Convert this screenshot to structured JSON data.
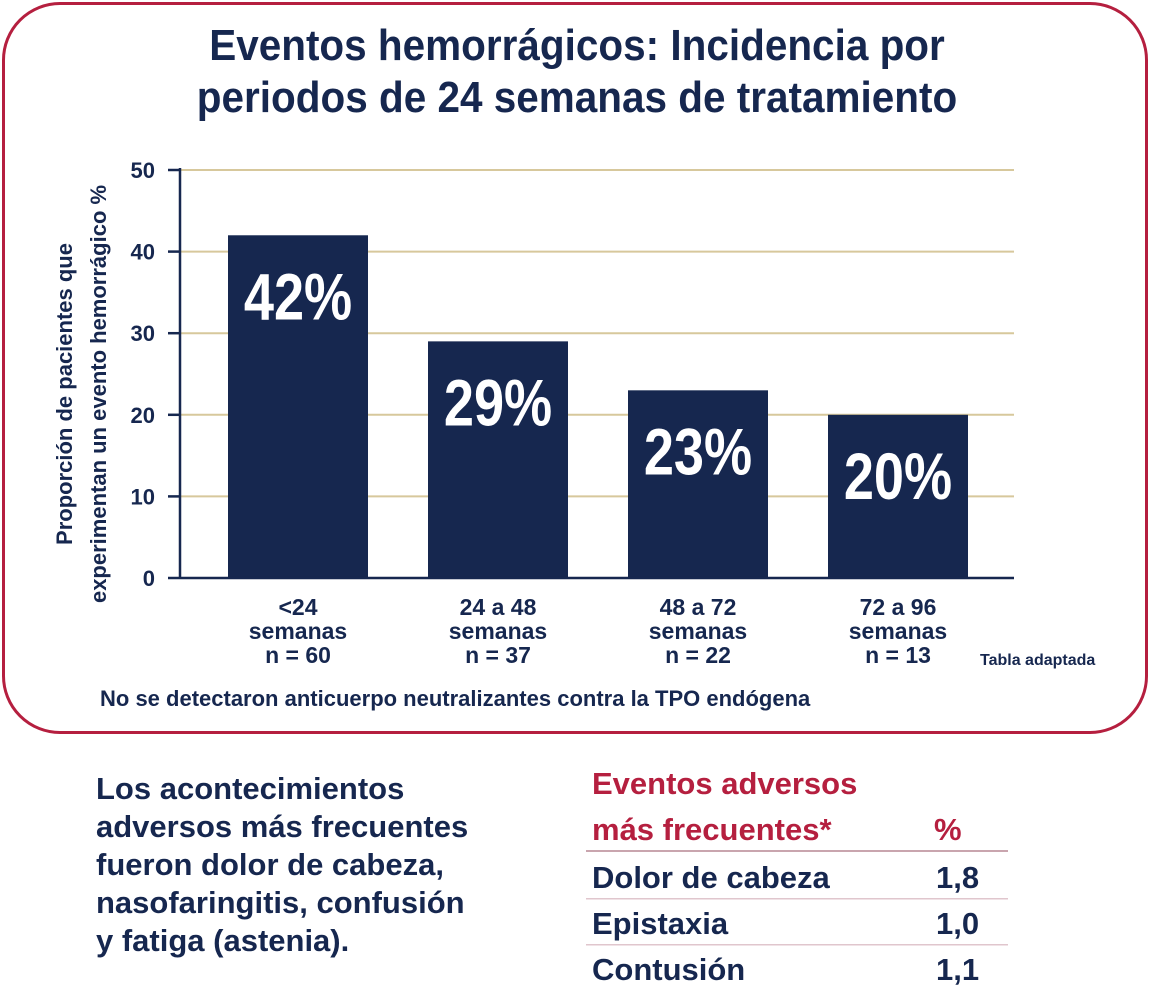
{
  "title_lines": [
    "Eventos hemorrágicos: Incidencia por",
    "periodos de 24 semanas de tratamiento"
  ],
  "chart_data": {
    "type": "bar",
    "ylabel_lines": [
      "Proporción de pacientes que",
      "experimentan un evento hemorrágico %"
    ],
    "ylim": [
      0,
      50
    ],
    "yticks": [
      "0",
      "10",
      "20",
      "30",
      "40",
      "50"
    ],
    "grid": true,
    "categories": [
      [
        "<24",
        "semanas",
        "n = 60"
      ],
      [
        "24 a 48",
        "semanas",
        "n = 37"
      ],
      [
        "48 a 72",
        "semanas",
        "n = 22"
      ],
      [
        "72 a 96",
        "semanas",
        "n = 13"
      ]
    ],
    "values": [
      42,
      29,
      23,
      20
    ],
    "data_labels": [
      "42%",
      "29%",
      "23%",
      "20%"
    ],
    "colors": {
      "bar": "#16274f",
      "grid": "#d7c89c",
      "axis": "#16274f",
      "bar_label": "#ffffff"
    }
  },
  "source_note": "Tabla adaptada",
  "footnote": "No se detectaron anticuerpo neutralizantes contra la TPO endógena",
  "summary_lines": [
    "Los acontecimientos",
    "adversos más frecuentes",
    "fueron dolor de cabeza,",
    "nasofaringitis, confusión",
    "y fatiga (astenia)."
  ],
  "ae_table": {
    "header_line1": "Eventos adversos",
    "header_line2": "más frecuentes*",
    "header_pct": "%",
    "rows": [
      {
        "name": "Dolor de cabeza",
        "value": "1,8"
      },
      {
        "name": "Epistaxia",
        "value": "1,0"
      },
      {
        "name": "Contusión",
        "value": "1,1"
      }
    ]
  },
  "colors": {
    "frame": "#b51f3f",
    "text": "#16274f",
    "accent": "#b51f3f",
    "rule": "#e0c6cd"
  }
}
